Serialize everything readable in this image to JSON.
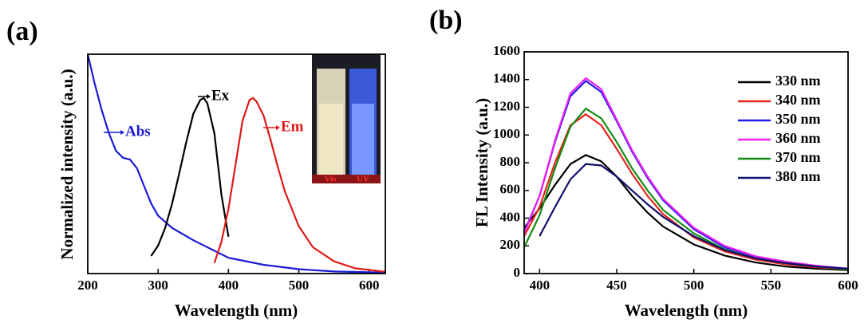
{
  "chart_data": [
    {
      "type": "line",
      "panel_label": "(a)",
      "xlabel": "Wavelength (nm)",
      "ylabel": "Normalized intensity (a.u.)",
      "xlim": [
        200,
        623
      ],
      "xticks": [
        200,
        300,
        400,
        500,
        600
      ],
      "ylim": [
        0,
        1.25
      ],
      "inset_labels": [
        "Vis",
        "UV"
      ],
      "series": [
        {
          "name": "Abs",
          "color": "#1a1ad6",
          "x": [
            200,
            210,
            220,
            230,
            240,
            250,
            260,
            270,
            280,
            290,
            300,
            320,
            350,
            380,
            400,
            450,
            500,
            550,
            623
          ],
          "values": [
            1.25,
            1.08,
            0.93,
            0.8,
            0.7,
            0.66,
            0.65,
            0.6,
            0.5,
            0.4,
            0.33,
            0.26,
            0.19,
            0.13,
            0.09,
            0.05,
            0.025,
            0.012,
            0.005
          ]
        },
        {
          "name": "Ex",
          "color": "#000000",
          "x": [
            290,
            300,
            310,
            320,
            330,
            340,
            350,
            360,
            365,
            370,
            380,
            390,
            400
          ],
          "values": [
            0.1,
            0.16,
            0.26,
            0.4,
            0.57,
            0.75,
            0.91,
            0.99,
            1.0,
            0.97,
            0.8,
            0.45,
            0.21
          ]
        },
        {
          "name": "Em",
          "color": "#e01818",
          "x": [
            380,
            390,
            400,
            410,
            420,
            430,
            435,
            440,
            450,
            460,
            470,
            480,
            500,
            520,
            550,
            580,
            623
          ],
          "values": [
            0.06,
            0.18,
            0.37,
            0.62,
            0.87,
            0.99,
            1.0,
            0.98,
            0.9,
            0.76,
            0.61,
            0.47,
            0.27,
            0.15,
            0.07,
            0.03,
            0.01
          ]
        }
      ]
    },
    {
      "type": "line",
      "panel_label": "(b)",
      "xlabel": "Wavelength (nm)",
      "ylabel": "FL Intensity (a.u.)",
      "xlim": [
        390,
        600
      ],
      "xticks": [
        400,
        450,
        500,
        550,
        600
      ],
      "ylim": [
        0,
        1600
      ],
      "yticks": [
        0,
        200,
        400,
        600,
        800,
        1000,
        1200,
        1400,
        1600
      ],
      "x": [
        390,
        400,
        410,
        420,
        430,
        440,
        450,
        460,
        470,
        480,
        500,
        520,
        540,
        560,
        580,
        600
      ],
      "series": [
        {
          "name": "330 nm",
          "color": "#000000",
          "values": [
            330,
            470,
            640,
            790,
            855,
            810,
            700,
            560,
            440,
            340,
            210,
            130,
            80,
            50,
            35,
            25
          ]
        },
        {
          "name": "340 nm",
          "color": "#e8231a",
          "values": [
            270,
            480,
            800,
            1070,
            1150,
            1070,
            900,
            720,
            560,
            430,
            260,
            160,
            100,
            65,
            45,
            30
          ]
        },
        {
          "name": "350 nm",
          "color": "#1c1cf0",
          "values": [
            300,
            560,
            950,
            1280,
            1390,
            1310,
            1100,
            880,
            690,
            530,
            320,
            190,
            120,
            80,
            55,
            35
          ]
        },
        {
          "name": "360 nm",
          "color": "#f01cf0",
          "values": [
            290,
            560,
            960,
            1300,
            1410,
            1330,
            1110,
            890,
            700,
            540,
            330,
            200,
            125,
            85,
            55,
            35
          ]
        },
        {
          "name": "370 nm",
          "color": "#148c14",
          "values": [
            190,
            420,
            760,
            1060,
            1190,
            1120,
            950,
            760,
            600,
            460,
            290,
            175,
            110,
            75,
            50,
            30
          ]
        },
        {
          "name": "380 nm",
          "color": "#10106e",
          "values": [
            null,
            270,
            480,
            680,
            790,
            780,
            700,
            600,
            500,
            410,
            270,
            170,
            110,
            75,
            50,
            35
          ]
        }
      ]
    }
  ]
}
